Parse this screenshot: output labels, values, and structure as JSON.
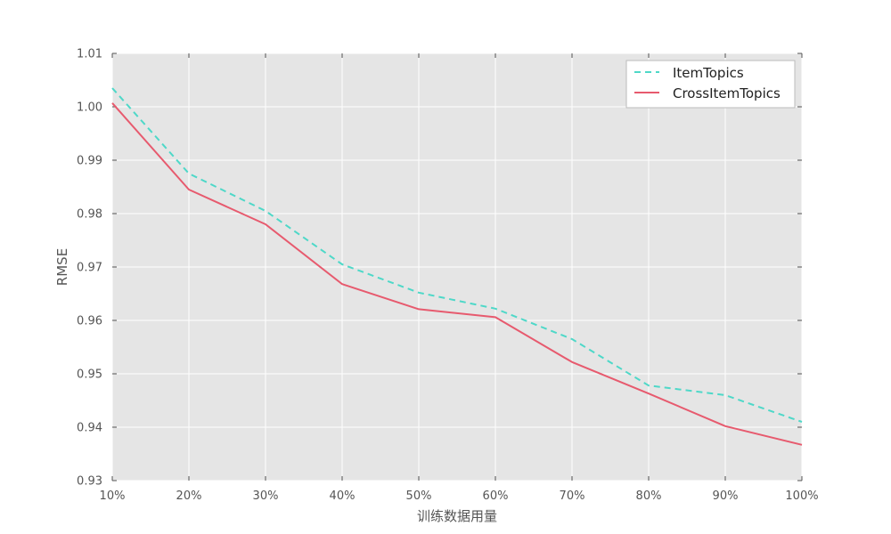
{
  "chart_data": {
    "type": "line",
    "categories": [
      "10%",
      "20%",
      "30%",
      "40%",
      "50%",
      "60%",
      "70%",
      "80%",
      "90%",
      "100%"
    ],
    "xlabel": "训练数据用量",
    "ylabel": "RMSE",
    "ylim": [
      0.93,
      1.01
    ],
    "yticks": [
      "0.93",
      "0.94",
      "0.95",
      "0.96",
      "0.97",
      "0.98",
      "0.99",
      "1.00",
      "1.01"
    ],
    "grid": true,
    "legend_position": "top-right",
    "series": [
      {
        "name": "ItemTopics",
        "color": "#4ed8c8",
        "dash": "dashed",
        "values": [
          1.0035,
          0.9875,
          0.9805,
          0.9705,
          0.9652,
          0.9622,
          0.9565,
          0.9478,
          0.946,
          0.941
        ]
      },
      {
        "name": "CrossItemTopics",
        "color": "#e75a6e",
        "dash": "solid",
        "values": [
          1.0007,
          0.9845,
          0.978,
          0.9668,
          0.9621,
          0.9606,
          0.9522,
          0.9463,
          0.9402,
          0.9367
        ]
      }
    ]
  }
}
